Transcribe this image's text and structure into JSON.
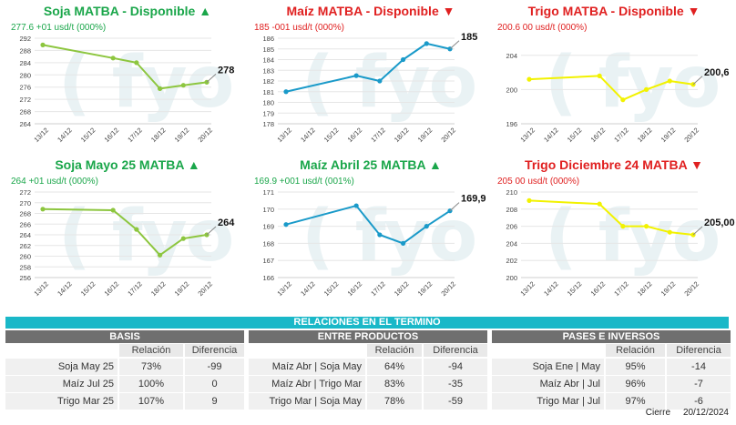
{
  "charts": [
    {
      "id": "soja-disp",
      "title": "Soja MATBA - Disponible",
      "arrow": "▲",
      "trend": "up",
      "subtitle": "277.6 +01 usd/t (000%)",
      "color": "#8dc63f",
      "last_label": "278",
      "yticks": [
        264,
        268,
        272,
        276,
        280,
        284,
        288,
        292
      ],
      "ymin": 264,
      "ymax": 292,
      "dates": [
        "13/12",
        "14/12",
        "15/12",
        "16/12",
        "17/12",
        "18/12",
        "19/12",
        "20/12"
      ],
      "points": [
        {
          "x": "13/12",
          "y": 289.8
        },
        {
          "x": "16/12",
          "y": 285.5
        },
        {
          "x": "17/12",
          "y": 284
        },
        {
          "x": "18/12",
          "y": 275.5
        },
        {
          "x": "19/12",
          "y": 276.6
        },
        {
          "x": "20/12",
          "y": 277.6
        }
      ]
    },
    {
      "id": "maiz-disp",
      "title": "Maíz MATBA - Disponible",
      "arrow": "▼",
      "trend": "down",
      "subtitle": "185 -001 usd/t (000%)",
      "color": "#1a9ac9",
      "last_label": "185",
      "yticks": [
        178,
        179,
        180,
        181,
        182,
        183,
        184,
        185,
        186
      ],
      "ymin": 178,
      "ymax": 186,
      "dates": [
        "13/12",
        "14/12",
        "15/12",
        "16/12",
        "17/12",
        "18/12",
        "19/12",
        "20/12"
      ],
      "points": [
        {
          "x": "13/12",
          "y": 181
        },
        {
          "x": "16/12",
          "y": 182.5
        },
        {
          "x": "17/12",
          "y": 182
        },
        {
          "x": "18/12",
          "y": 184
        },
        {
          "x": "19/12",
          "y": 185.5
        },
        {
          "x": "20/12",
          "y": 185
        }
      ]
    },
    {
      "id": "trigo-disp",
      "title": "Trigo MATBA - Disponible",
      "arrow": "▼",
      "trend": "down",
      "subtitle": "200.6 00 usd/t (000%)",
      "color": "#f2f200",
      "last_label": "200,6",
      "yticks": [
        196,
        200,
        204
      ],
      "ymin": 196,
      "ymax": 206,
      "dates": [
        "13/12",
        "14/12",
        "15/12",
        "16/12",
        "17/12",
        "18/12",
        "19/12",
        "20/12"
      ],
      "points": [
        {
          "x": "13/12",
          "y": 201.2
        },
        {
          "x": "16/12",
          "y": 201.6
        },
        {
          "x": "17/12",
          "y": 198.8
        },
        {
          "x": "18/12",
          "y": 200
        },
        {
          "x": "19/12",
          "y": 201
        },
        {
          "x": "20/12",
          "y": 200.6
        }
      ]
    },
    {
      "id": "soja-may",
      "title": "Soja Mayo 25 MATBA",
      "arrow": "▲",
      "trend": "up",
      "subtitle": "264 +01 usd/t (000%)",
      "color": "#8dc63f",
      "last_label": "264",
      "yticks": [
        256,
        258,
        260,
        262,
        264,
        266,
        268,
        270,
        272
      ],
      "ymin": 256,
      "ymax": 272,
      "dates": [
        "13/12",
        "14/12",
        "15/12",
        "16/12",
        "17/12",
        "18/12",
        "19/12",
        "20/12"
      ],
      "points": [
        {
          "x": "13/12",
          "y": 268.8
        },
        {
          "x": "16/12",
          "y": 268.6
        },
        {
          "x": "17/12",
          "y": 265
        },
        {
          "x": "18/12",
          "y": 260.2
        },
        {
          "x": "19/12",
          "y": 263.3
        },
        {
          "x": "20/12",
          "y": 264
        }
      ]
    },
    {
      "id": "maiz-abr",
      "title": "Maíz Abril 25 MATBA",
      "arrow": "▲",
      "trend": "up",
      "subtitle": "169.9 +001 usd/t (001%)",
      "color": "#1a9ac9",
      "last_label": "169,9",
      "yticks": [
        166,
        167,
        168,
        169,
        170,
        171
      ],
      "ymin": 166,
      "ymax": 171,
      "dates": [
        "13/12",
        "14/12",
        "15/12",
        "16/12",
        "17/12",
        "18/12",
        "19/12",
        "20/12"
      ],
      "points": [
        {
          "x": "13/12",
          "y": 169.1
        },
        {
          "x": "16/12",
          "y": 170.2
        },
        {
          "x": "17/12",
          "y": 168.5
        },
        {
          "x": "18/12",
          "y": 168
        },
        {
          "x": "19/12",
          "y": 169
        },
        {
          "x": "20/12",
          "y": 169.9
        }
      ]
    },
    {
      "id": "trigo-dic",
      "title": "Trigo Diciembre 24 MATBA",
      "arrow": "▼",
      "trend": "down",
      "subtitle": "205 00 usd/t (000%)",
      "color": "#f2f200",
      "last_label": "205,00",
      "yticks": [
        200,
        202,
        204,
        206,
        208,
        210
      ],
      "ymin": 200,
      "ymax": 210,
      "dates": [
        "13/12",
        "14/12",
        "15/12",
        "16/12",
        "17/12",
        "18/12",
        "19/12",
        "20/12"
      ],
      "points": [
        {
          "x": "13/12",
          "y": 209
        },
        {
          "x": "16/12",
          "y": 208.6
        },
        {
          "x": "17/12",
          "y": 206
        },
        {
          "x": "18/12",
          "y": 206
        },
        {
          "x": "19/12",
          "y": 205.3
        },
        {
          "x": "20/12",
          "y": 205
        }
      ]
    }
  ],
  "watermark": "( fyo",
  "relations_title": "RELACIONES EN EL TERMINO",
  "tables": [
    {
      "title": "BASIS",
      "col1": "Relación",
      "col2": "Diferencia",
      "rows": [
        [
          "Soja May 25",
          "73%",
          "-99"
        ],
        [
          "Maíz Jul 25",
          "100%",
          "0"
        ],
        [
          "Trigo Mar 25",
          "107%",
          "9"
        ]
      ]
    },
    {
      "title": "ENTRE PRODUCTOS",
      "col1": "Relación",
      "col2": "Diferencia",
      "rows": [
        [
          "Maíz Abr | Soja May",
          "64%",
          "-94"
        ],
        [
          "Maíz Abr | Trigo Mar",
          "83%",
          "-35"
        ],
        [
          "Trigo Mar | Soja May",
          "78%",
          "-59"
        ]
      ]
    },
    {
      "title": "PASES E INVERSOS",
      "col1": "Relación",
      "col2": "Diferencia",
      "rows": [
        [
          "Soja Ene | May",
          "95%",
          "-14"
        ],
        [
          "Maíz Abr | Jul",
          "96%",
          "-7"
        ],
        [
          "Trigo Mar | Jul",
          "97%",
          "-6"
        ]
      ]
    }
  ],
  "footer": {
    "label": "Cierre",
    "date": "20/12/2024"
  }
}
